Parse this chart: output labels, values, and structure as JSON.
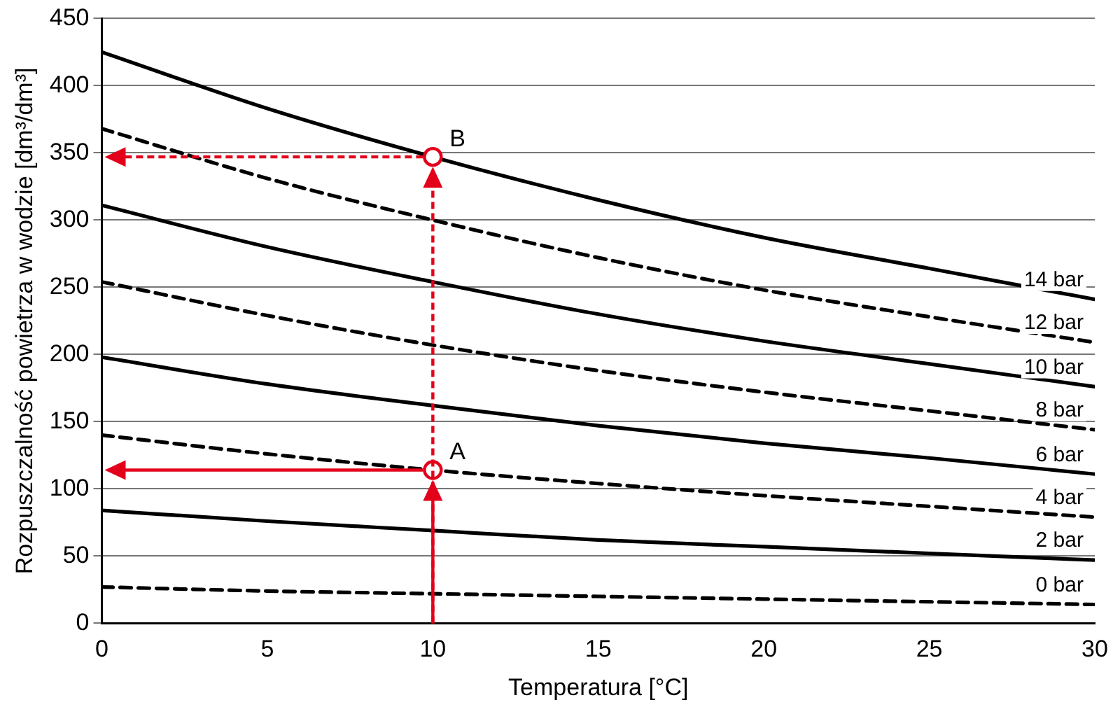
{
  "chart_data": {
    "type": "line",
    "xlabel": "Temperatura [°C]",
    "ylabel": "Rozpuszczalność powietrza w wodzie [dm³/dm³]",
    "x": [
      0,
      5,
      10,
      15,
      20,
      25,
      30
    ],
    "xlim": [
      0,
      30
    ],
    "xticks": [
      0,
      5,
      10,
      15,
      20,
      25,
      30
    ],
    "ylim": [
      0,
      450
    ],
    "yticks": [
      0,
      50,
      100,
      150,
      200,
      250,
      300,
      350,
      400,
      450
    ],
    "grid": "y",
    "legend": false,
    "marker": "none",
    "series": [
      {
        "name": "0 bar",
        "color": "#000000",
        "line_style": "dashed",
        "values": [
          27,
          24,
          22,
          20,
          18,
          16,
          14
        ]
      },
      {
        "name": "2 bar",
        "color": "#000000",
        "line_style": "solid",
        "values": [
          84,
          76,
          69,
          62,
          57,
          52,
          47
        ]
      },
      {
        "name": "4 bar",
        "color": "#000000",
        "line_style": "dashed",
        "values": [
          140,
          126,
          114,
          104,
          95,
          87,
          79
        ]
      },
      {
        "name": "6 bar",
        "color": "#000000",
        "line_style": "solid",
        "values": [
          198,
          178,
          162,
          147,
          134,
          123,
          111
        ]
      },
      {
        "name": "8 bar",
        "color": "#000000",
        "line_style": "dashed",
        "values": [
          254,
          229,
          207,
          188,
          172,
          158,
          144
        ]
      },
      {
        "name": "10 bar",
        "color": "#000000",
        "line_style": "solid",
        "values": [
          311,
          280,
          254,
          230,
          210,
          193,
          176
        ]
      },
      {
        "name": "12 bar",
        "color": "#000000",
        "line_style": "dashed",
        "values": [
          368,
          331,
          300,
          272,
          248,
          228,
          209
        ]
      },
      {
        "name": "14 bar",
        "color": "#000000",
        "line_style": "solid",
        "values": [
          425,
          383,
          347,
          315,
          287,
          264,
          241
        ]
      }
    ],
    "annotations": [
      {
        "text": "A",
        "x": 10,
        "y": 114
      },
      {
        "text": "B",
        "x": 10,
        "y": 347
      }
    ]
  }
}
